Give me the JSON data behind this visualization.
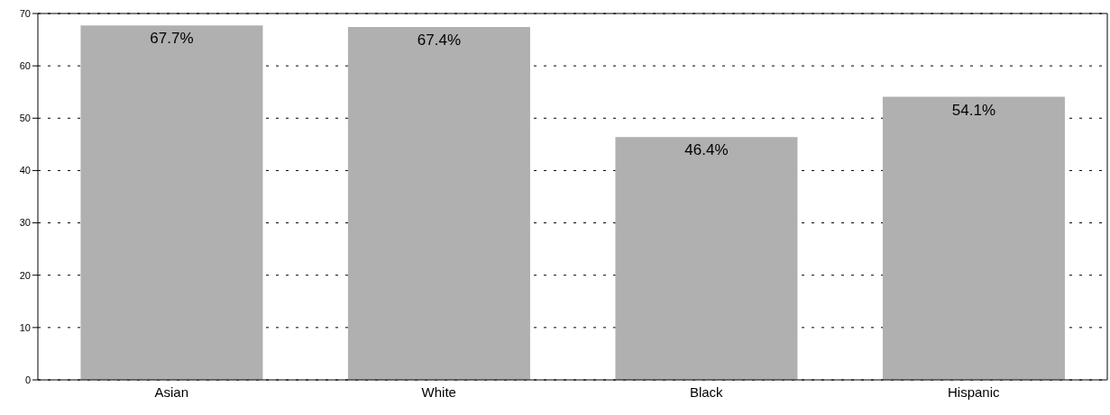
{
  "chart_data": {
    "type": "bar",
    "categories": [
      "Asian",
      "White",
      "Black",
      "Hispanic"
    ],
    "values": [
      67.7,
      67.4,
      46.4,
      54.1
    ],
    "value_labels": [
      "67.7%",
      "67.4%",
      "46.4%",
      "54.1%"
    ],
    "color": "#b0b0b0",
    "ylim": [
      0,
      70
    ],
    "yticks": [
      0,
      10,
      20,
      30,
      40,
      50,
      60,
      70
    ],
    "grid": "y",
    "legend": false
  }
}
